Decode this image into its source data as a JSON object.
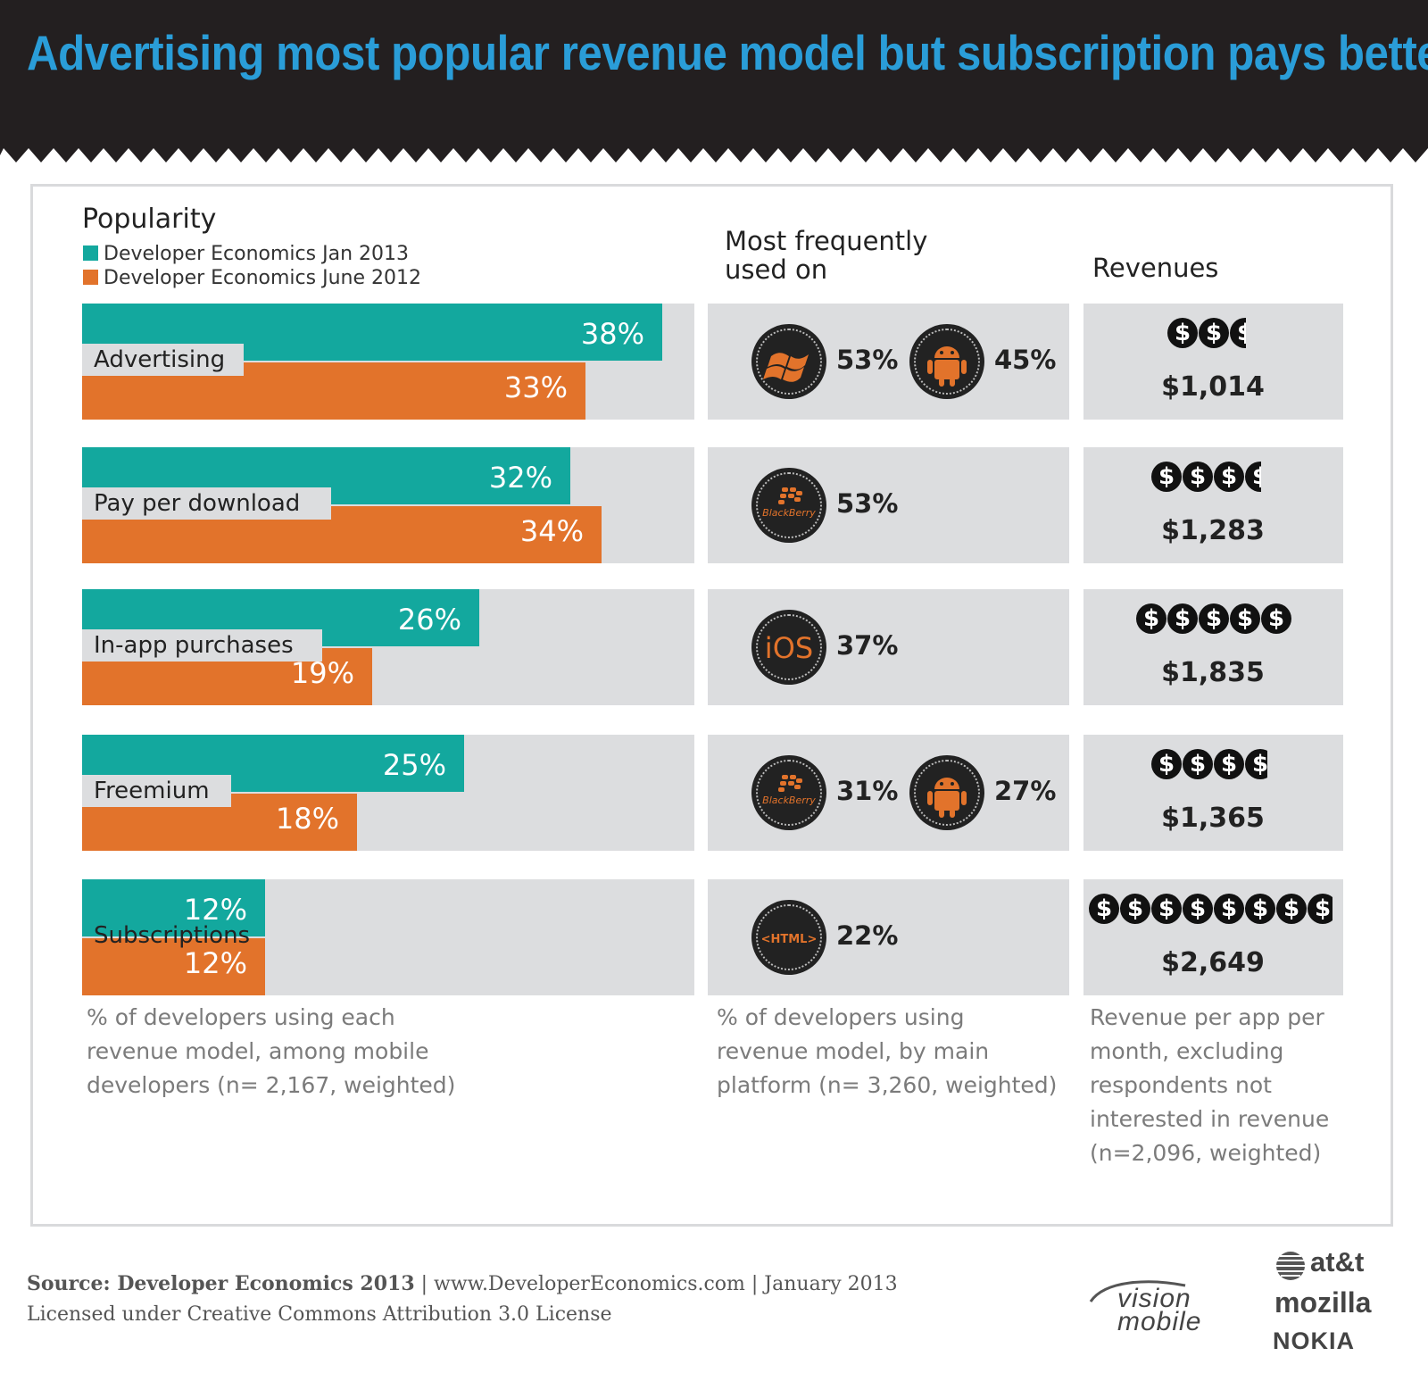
{
  "title": "Advertising most popular revenue model but subscription pays better",
  "colors": {
    "teal": "#13a89e",
    "orange": "#e2732b",
    "title_blue": "#2a9dd8",
    "header_bg": "#231f20",
    "row_bg": "#dcdddf"
  },
  "legend": {
    "title": "Popularity",
    "items": [
      {
        "label": "Developer Economics Jan 2013",
        "color": "#13a89e"
      },
      {
        "label": "Developer Economics June 2012",
        "color": "#e2732b"
      }
    ]
  },
  "columns": {
    "platform_head_1": "Most frequently",
    "platform_head_2": "used on",
    "revenue_head": "Revenues"
  },
  "chart_data": {
    "type": "bar",
    "title": "Popularity",
    "categories": [
      "Advertising",
      "Pay per download",
      "In-app purchases",
      "Freemium",
      "Subscriptions"
    ],
    "series": [
      {
        "name": "Developer Economics Jan 2013",
        "values": [
          38,
          32,
          26,
          25,
          12
        ],
        "labels": [
          "38%",
          "32%",
          "26%",
          "25%",
          "12%"
        ]
      },
      {
        "name": "Developer Economics June 2012",
        "values": [
          33,
          34,
          19,
          18,
          12
        ],
        "labels": [
          "33%",
          "34%",
          "19%",
          "18%",
          "12%"
        ]
      }
    ],
    "xlim": [
      0,
      40
    ],
    "unit": "%"
  },
  "platforms": [
    [
      {
        "icon": "windows-phone-icon",
        "pct": "53%"
      },
      {
        "icon": "android-icon",
        "pct": "45%"
      }
    ],
    [
      {
        "icon": "blackberry-icon",
        "label": "BlackBerry",
        "pct": "53%"
      }
    ],
    [
      {
        "icon": "ios-icon",
        "label": "iOS",
        "pct": "37%"
      }
    ],
    [
      {
        "icon": "blackberry-icon",
        "label": "BlackBerry",
        "pct": "31%"
      },
      {
        "icon": "android-icon",
        "pct": "27%"
      }
    ],
    [
      {
        "icon": "html-icon",
        "label": "<HTML>",
        "pct": "22%"
      }
    ]
  ],
  "revenues": [
    {
      "value": "$1,014",
      "amount": 1014
    },
    {
      "value": "$1,283",
      "amount": 1283
    },
    {
      "value": "$1,835",
      "amount": 1835
    },
    {
      "value": "$1,365",
      "amount": 1365
    },
    {
      "value": "$2,649",
      "amount": 2649
    }
  ],
  "coin_symbol": "$",
  "notes": {
    "popularity": [
      "% of developers using each",
      "revenue model, among mobile",
      "developers (n= 2,167, weighted)"
    ],
    "platform": [
      "% of developers using",
      "revenue model, by main",
      "platform (n= 3,260, weighted)"
    ],
    "revenue": [
      "Revenue per app per",
      "month, excluding",
      "respondents not",
      "interested in revenue",
      "(n=2,096, weighted)"
    ]
  },
  "footer": {
    "source_bold": "Source: Developer Economics 2013",
    "source_rest": " | www.DeveloperEconomics.com | January 2013",
    "license": "Licensed under Creative Commons Attribution 3.0 License"
  },
  "logos": {
    "vision": "vision",
    "mobile": "mobile",
    "att": "at&t",
    "mozilla": "mozilla",
    "nokia": "NOKIA"
  }
}
